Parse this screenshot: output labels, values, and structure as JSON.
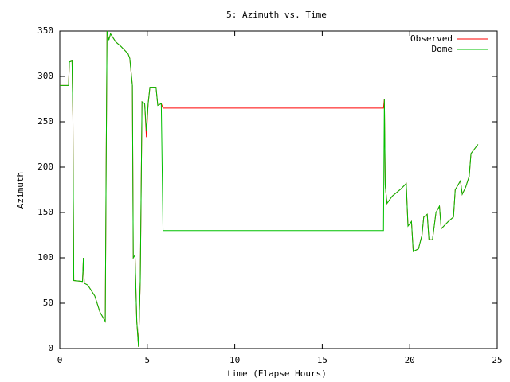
{
  "chart_data": {
    "type": "line",
    "title": "5: Azimuth vs. Time",
    "x_label": "time (Elapse Hours)",
    "y_label": "Azimuth",
    "x": [
      0,
      0.5,
      0.55,
      0.7,
      0.75,
      0.8,
      1.3,
      1.35,
      1.4,
      1.6,
      2.0,
      2.3,
      2.6,
      2.65,
      2.7,
      2.8,
      2.9,
      3.2,
      3.5,
      3.9,
      4.0,
      4.15,
      4.2,
      4.3,
      4.4,
      4.5,
      4.6,
      4.7,
      4.85,
      4.95,
      5.05,
      5.15,
      5.5,
      5.6,
      5.8,
      5.9,
      18.5,
      18.55,
      18.6,
      18.7,
      19.0,
      19.5,
      19.8,
      19.9,
      20.1,
      20.2,
      20.5,
      20.7,
      20.8,
      21.0,
      21.1,
      21.3,
      21.5,
      21.7,
      21.8,
      22.2,
      22.5,
      22.6,
      22.9,
      23.0,
      23.2,
      23.4,
      23.5,
      23.9
    ],
    "series": [
      {
        "name": "Observed",
        "color": "#ff0000",
        "values": [
          290,
          290,
          316,
          317,
          255,
          75,
          74,
          100,
          72,
          70,
          58,
          40,
          30,
          200,
          350,
          340,
          347,
          338,
          333,
          325,
          320,
          290,
          100,
          103,
          30,
          2,
          75,
          272,
          270,
          233,
          270,
          288,
          288,
          268,
          270,
          265,
          265,
          275,
          180,
          160,
          168,
          176,
          182,
          135,
          140,
          107,
          110,
          125,
          145,
          148,
          120,
          120,
          150,
          157,
          132,
          140,
          145,
          175,
          185,
          170,
          178,
          190,
          215,
          225
        ]
      },
      {
        "name": "Dome",
        "color": "#00c000",
        "values": [
          290,
          290,
          316,
          317,
          255,
          75,
          74,
          100,
          72,
          70,
          58,
          40,
          30,
          200,
          350,
          340,
          347,
          338,
          333,
          325,
          320,
          290,
          100,
          103,
          30,
          2,
          75,
          272,
          270,
          240,
          270,
          288,
          288,
          268,
          270,
          130,
          130,
          275,
          180,
          160,
          168,
          176,
          182,
          135,
          140,
          107,
          110,
          125,
          145,
          148,
          120,
          120,
          150,
          157,
          132,
          140,
          145,
          175,
          185,
          170,
          178,
          190,
          215,
          225
        ]
      }
    ],
    "xlim": [
      0,
      25
    ],
    "xticks": [
      0,
      5,
      10,
      15,
      20,
      25
    ],
    "ylim": [
      0,
      350
    ],
    "yticks": [
      0,
      50,
      100,
      150,
      200,
      250,
      300,
      350
    ],
    "legend": "top-right"
  }
}
